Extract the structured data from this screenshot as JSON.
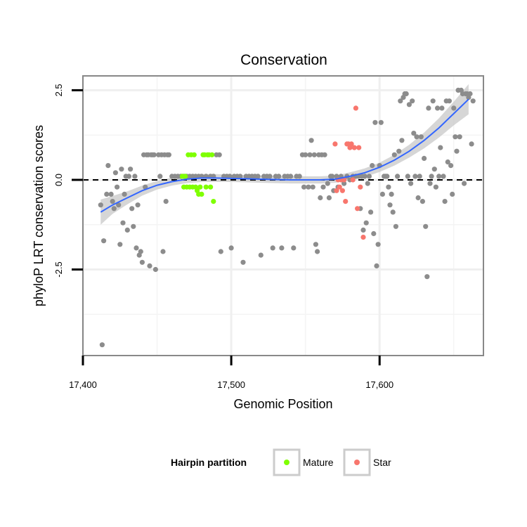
{
  "chart_data": {
    "type": "scatter",
    "title": "Conservation",
    "xlabel": "Genomic Position",
    "ylabel": "phyloP LRT conservation scores",
    "xlim": [
      17400,
      17670
    ],
    "ylim": [
      -4.9,
      2.9
    ],
    "x_ticks": [
      17400,
      17500,
      17600
    ],
    "x_tick_labels": [
      "17,400",
      "17,500",
      "17,600"
    ],
    "y_ticks": [
      -2.5,
      0.0,
      2.5
    ],
    "y_tick_labels": [
      "-2.5",
      "0.0",
      "2.5"
    ],
    "grid": true,
    "reference_line": {
      "y": 0,
      "style": "dashed"
    },
    "legend": {
      "title": "Hairpin partition",
      "placement": "bottom",
      "entries": [
        {
          "label": "Mature",
          "color": "#7fff00"
        },
        {
          "label": "Star",
          "color": "#f8766d"
        }
      ]
    },
    "colors": {
      "other": "#8c8c8c",
      "Mature": "#7fff00",
      "Star": "#f8766d",
      "smooth": "#3366ff",
      "ribbon": "#c8c8c8"
    },
    "series": [
      {
        "group": "other",
        "points": [
          [
            17413,
            -4.6
          ],
          [
            17412,
            -0.7
          ],
          [
            17414,
            -1.7
          ],
          [
            17416,
            -0.4
          ],
          [
            17417,
            0.4
          ],
          [
            17419,
            -0.4
          ],
          [
            17420,
            -0.6
          ],
          [
            17421,
            -0.8
          ],
          [
            17422,
            0.2
          ],
          [
            17423,
            -0.2
          ],
          [
            17424,
            -0.7
          ],
          [
            17425,
            -1.8
          ],
          [
            17426,
            0.3
          ],
          [
            17427,
            -1.2
          ],
          [
            17428,
            -0.4
          ],
          [
            17429,
            0.1
          ],
          [
            17430,
            -1.4
          ],
          [
            17431,
            0.1
          ],
          [
            17432,
            0.3
          ],
          [
            17433,
            -0.8
          ],
          [
            17434,
            -1.3
          ],
          [
            17435,
            0.1
          ],
          [
            17436,
            -1.9
          ],
          [
            17437,
            -0.7
          ],
          [
            17438,
            -2.1
          ],
          [
            17439,
            -2.0
          ],
          [
            17440,
            -2.3
          ],
          [
            17441,
            0.7
          ],
          [
            17442,
            -0.2
          ],
          [
            17443,
            0.7
          ],
          [
            17444,
            0.7
          ],
          [
            17445,
            -2.4
          ],
          [
            17446,
            0.7
          ],
          [
            17447,
            0.7
          ],
          [
            17448,
            0.7
          ],
          [
            17449,
            -2.5
          ],
          [
            17451,
            0.7
          ],
          [
            17452,
            0.1
          ],
          [
            17453,
            0.7
          ],
          [
            17454,
            -2.0
          ],
          [
            17455,
            0.7
          ],
          [
            17456,
            -0.6
          ],
          [
            17457,
            0.7
          ],
          [
            17458,
            0.7
          ],
          [
            17460,
            0.1
          ],
          [
            17462,
            0.1
          ],
          [
            17464,
            0.1
          ],
          [
            17466,
            0.1
          ],
          [
            17468,
            0.1
          ],
          [
            17470,
            0.1
          ],
          [
            17472,
            0.1
          ],
          [
            17474,
            0.1
          ],
          [
            17476,
            0.1
          ],
          [
            17478,
            0.1
          ],
          [
            17480,
            0.1
          ],
          [
            17483,
            0.1
          ],
          [
            17486,
            0.1
          ],
          [
            17488,
            0.1
          ],
          [
            17490,
            0.7
          ],
          [
            17492,
            0.7
          ],
          [
            17493,
            -2.0
          ],
          [
            17495,
            0.1
          ],
          [
            17497,
            0.1
          ],
          [
            17499,
            0.1
          ],
          [
            17500,
            -1.9
          ],
          [
            17502,
            0.1
          ],
          [
            17504,
            0.1
          ],
          [
            17506,
            0.1
          ],
          [
            17508,
            -2.3
          ],
          [
            17510,
            0.1
          ],
          [
            17512,
            0.1
          ],
          [
            17514,
            0.1
          ],
          [
            17516,
            0.1
          ],
          [
            17518,
            0.1
          ],
          [
            17520,
            -2.1
          ],
          [
            17522,
            0.1
          ],
          [
            17524,
            0.1
          ],
          [
            17526,
            0.1
          ],
          [
            17528,
            -1.9
          ],
          [
            17530,
            0.1
          ],
          [
            17532,
            0.1
          ],
          [
            17534,
            -1.9
          ],
          [
            17536,
            0.1
          ],
          [
            17538,
            0.1
          ],
          [
            17540,
            0.1
          ],
          [
            17542,
            -1.9
          ],
          [
            17544,
            0.1
          ],
          [
            17546,
            0.1
          ],
          [
            17548,
            0.7
          ],
          [
            17549,
            -0.2
          ],
          [
            17550,
            0.7
          ],
          [
            17552,
            -0.2
          ],
          [
            17553,
            0.7
          ],
          [
            17554,
            1.1
          ],
          [
            17555,
            -0.2
          ],
          [
            17556,
            0.7
          ],
          [
            17557,
            -1.8
          ],
          [
            17558,
            -2.0
          ],
          [
            17559,
            0.7
          ],
          [
            17560,
            -0.5
          ],
          [
            17561,
            0.7
          ],
          [
            17562,
            -0.2
          ],
          [
            17563,
            0.7
          ],
          [
            17565,
            -0.1
          ],
          [
            17566,
            -0.5
          ],
          [
            17567,
            0.1
          ],
          [
            17568,
            0.1
          ],
          [
            17569,
            -0.3
          ],
          [
            17571,
            0.1
          ],
          [
            17572,
            -0.2
          ],
          [
            17574,
            0.1
          ],
          [
            17576,
            -0.1
          ],
          [
            17578,
            0.1
          ],
          [
            17580,
            0.0
          ],
          [
            17582,
            0.1
          ],
          [
            17584,
            0.1
          ],
          [
            17586,
            0.1
          ],
          [
            17587,
            -0.8
          ],
          [
            17588,
            0.1
          ],
          [
            17589,
            -1.4
          ],
          [
            17590,
            0.1
          ],
          [
            17591,
            -1.2
          ],
          [
            17592,
            -0.1
          ],
          [
            17593,
            0.1
          ],
          [
            17594,
            -0.9
          ],
          [
            17595,
            0.4
          ],
          [
            17596,
            -1.5
          ],
          [
            17597,
            1.6
          ],
          [
            17598,
            -2.4
          ],
          [
            17599,
            -1.8
          ],
          [
            17600,
            0.4
          ],
          [
            17601,
            1.6
          ],
          [
            17602,
            -0.4
          ],
          [
            17603,
            0.1
          ],
          [
            17604,
            0.1
          ],
          [
            17605,
            0.1
          ],
          [
            17606,
            -0.2
          ],
          [
            17607,
            -0.7
          ],
          [
            17608,
            -0.4
          ],
          [
            17609,
            -0.9
          ],
          [
            17610,
            0.7
          ],
          [
            17611,
            -1.3
          ],
          [
            17612,
            0.1
          ],
          [
            17613,
            0.8
          ],
          [
            17614,
            2.2
          ],
          [
            17615,
            1.1
          ],
          [
            17616,
            2.3
          ],
          [
            17617,
            2.4
          ],
          [
            17618,
            2.4
          ],
          [
            17619,
            0.1
          ],
          [
            17620,
            2.1
          ],
          [
            17621,
            -0.1
          ],
          [
            17622,
            2.2
          ],
          [
            17623,
            1.3
          ],
          [
            17624,
            0.1
          ],
          [
            17625,
            1.2
          ],
          [
            17626,
            -0.5
          ],
          [
            17627,
            0.1
          ],
          [
            17628,
            1.2
          ],
          [
            17629,
            -0.6
          ],
          [
            17630,
            0.6
          ],
          [
            17631,
            -1.3
          ],
          [
            17632,
            -2.7
          ],
          [
            17633,
            2.0
          ],
          [
            17634,
            -0.1
          ],
          [
            17635,
            0.1
          ],
          [
            17636,
            2.2
          ],
          [
            17637,
            0.3
          ],
          [
            17638,
            -0.2
          ],
          [
            17639,
            2.0
          ],
          [
            17640,
            0.1
          ],
          [
            17641,
            0.9
          ],
          [
            17642,
            2.0
          ],
          [
            17643,
            0.1
          ],
          [
            17644,
            -0.6
          ],
          [
            17645,
            2.2
          ],
          [
            17646,
            0.5
          ],
          [
            17647,
            2.2
          ],
          [
            17648,
            0.4
          ],
          [
            17649,
            -0.4
          ],
          [
            17650,
            2.0
          ],
          [
            17651,
            1.2
          ],
          [
            17652,
            0.8
          ],
          [
            17653,
            2.5
          ],
          [
            17654,
            1.2
          ],
          [
            17655,
            2.5
          ],
          [
            17656,
            2.4
          ],
          [
            17657,
            -0.1
          ],
          [
            17658,
            2.4
          ],
          [
            17659,
            2.4
          ],
          [
            17660,
            2.3
          ],
          [
            17661,
            2.4
          ],
          [
            17662,
            1.0
          ],
          [
            17663,
            2.2
          ]
        ]
      },
      {
        "group": "Mature",
        "points": [
          [
            17467,
            0.1
          ],
          [
            17468,
            -0.2
          ],
          [
            17469,
            0.1
          ],
          [
            17470,
            -0.2
          ],
          [
            17471,
            0.7
          ],
          [
            17472,
            -0.2
          ],
          [
            17473,
            0.7
          ],
          [
            17474,
            -0.2
          ],
          [
            17475,
            0.7
          ],
          [
            17476,
            -0.2
          ],
          [
            17477,
            -0.3
          ],
          [
            17478,
            -0.4
          ],
          [
            17479,
            -0.2
          ],
          [
            17480,
            -0.4
          ],
          [
            17481,
            0.7
          ],
          [
            17482,
            0.7
          ],
          [
            17483,
            -0.2
          ],
          [
            17484,
            0.7
          ],
          [
            17485,
            0.7
          ],
          [
            17486,
            -0.2
          ],
          [
            17487,
            0.7
          ],
          [
            17488,
            -0.6
          ]
        ]
      },
      {
        "group": "Star",
        "points": [
          [
            17570,
            1.0
          ],
          [
            17571,
            -0.3
          ],
          [
            17572,
            0.0
          ],
          [
            17573,
            -0.2
          ],
          [
            17574,
            0.0
          ],
          [
            17575,
            -0.3
          ],
          [
            17576,
            0.0
          ],
          [
            17577,
            -0.6
          ],
          [
            17578,
            1.0
          ],
          [
            17579,
            1.0
          ],
          [
            17580,
            0.9
          ],
          [
            17581,
            1.0
          ],
          [
            17582,
            0.0
          ],
          [
            17583,
            0.9
          ],
          [
            17584,
            2.0
          ],
          [
            17585,
            -0.8
          ],
          [
            17586,
            0.9
          ],
          [
            17587,
            -0.2
          ],
          [
            17589,
            -1.6
          ]
        ]
      }
    ],
    "smooth_fit": {
      "x": [
        17412,
        17420,
        17430,
        17440,
        17450,
        17460,
        17470,
        17480,
        17490,
        17500,
        17510,
        17520,
        17530,
        17540,
        17550,
        17560,
        17570,
        17580,
        17590,
        17600,
        17610,
        17620,
        17630,
        17640,
        17650,
        17660
      ],
      "y": [
        -0.9,
        -0.7,
        -0.5,
        -0.3,
        -0.15,
        -0.05,
        0.02,
        0.05,
        0.05,
        0.04,
        0.03,
        0.02,
        0.01,
        0.0,
        0.0,
        0.0,
        0.02,
        0.1,
        0.2,
        0.35,
        0.55,
        0.8,
        1.1,
        1.45,
        1.85,
        2.25
      ],
      "ribbon_halfwidth": [
        0.35,
        0.25,
        0.18,
        0.14,
        0.12,
        0.11,
        0.11,
        0.11,
        0.11,
        0.1,
        0.1,
        0.1,
        0.1,
        0.1,
        0.1,
        0.1,
        0.1,
        0.11,
        0.12,
        0.13,
        0.15,
        0.18,
        0.22,
        0.27,
        0.33,
        0.42
      ]
    }
  }
}
